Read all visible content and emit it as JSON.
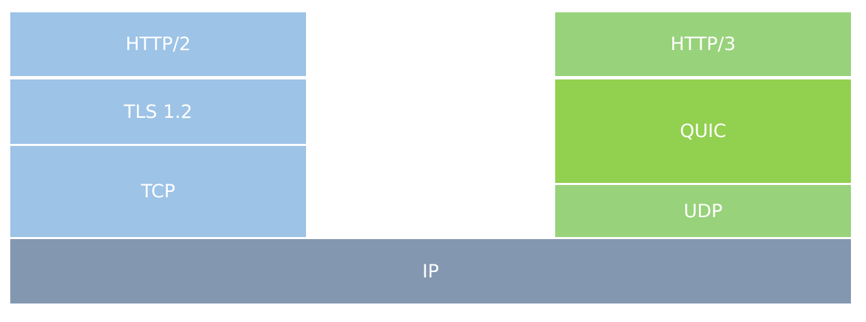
{
  "left_stack": {
    "http": {
      "label": "HTTP/2",
      "color": "#9DC3E6"
    },
    "tls": {
      "label": "TLS 1.2",
      "color": "#9DC3E6"
    },
    "tcp": {
      "label": "TCP",
      "color": "#9DC3E6"
    }
  },
  "right_stack": {
    "http": {
      "label": "HTTP/3",
      "color": "#98D27B"
    },
    "quic": {
      "label": "QUIC",
      "color": "#92D050"
    },
    "udp": {
      "label": "UDP",
      "color": "#98D27B"
    }
  },
  "base": {
    "label": "IP",
    "color": "#8497B0"
  }
}
